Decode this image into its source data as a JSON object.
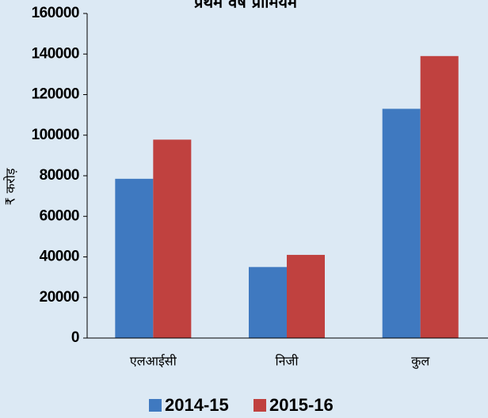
{
  "chart_data": {
    "type": "bar",
    "title": "प्रथम वर्ष प्रीमियम",
    "y_label": "₹ करोड़",
    "categories": [
      "एलआईसी",
      "निजी",
      "कुल"
    ],
    "series": [
      {
        "name": "2014-15",
        "color": "#3f79c0",
        "values": [
          78500,
          35000,
          113000
        ]
      },
      {
        "name": "2015-16",
        "color": "#c0413f",
        "values": [
          97800,
          41000,
          139000
        ]
      }
    ],
    "ylim": [
      0,
      160000
    ],
    "yticks": [
      0,
      20000,
      40000,
      60000,
      80000,
      100000,
      120000,
      140000,
      160000
    ],
    "legend": "bottom"
  }
}
